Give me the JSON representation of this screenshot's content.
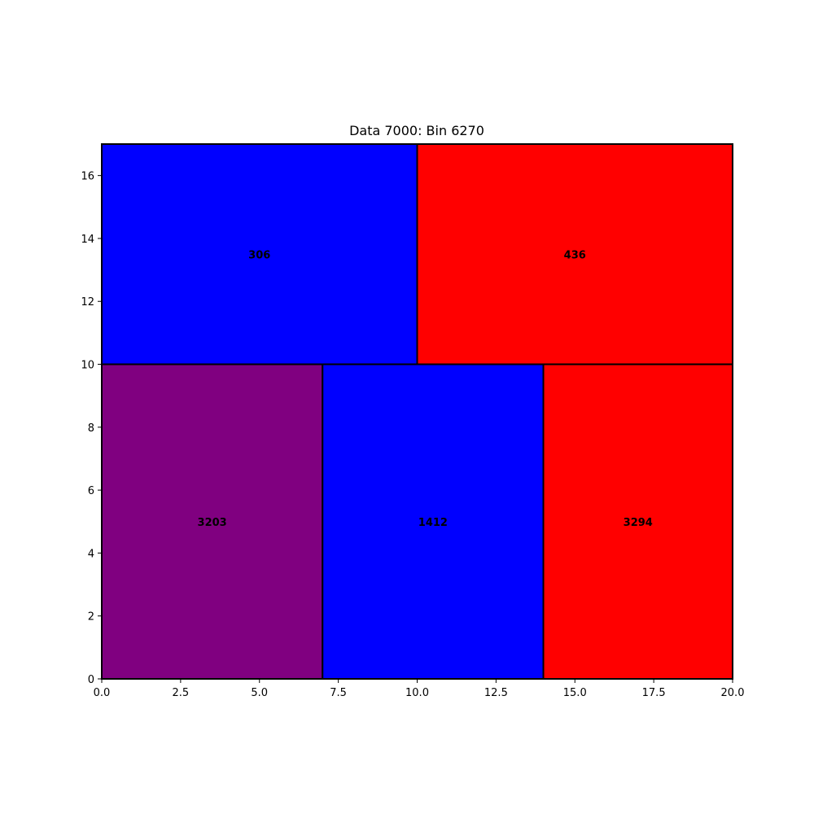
{
  "chart_data": {
    "type": "rectangle-packing",
    "title": "Data 7000: Bin 6270",
    "xlabel": "",
    "ylabel": "",
    "xlim": [
      0,
      20
    ],
    "ylim": [
      0,
      17
    ],
    "x_ticks": [
      "0.0",
      "2.5",
      "5.0",
      "7.5",
      "10.0",
      "12.5",
      "15.0",
      "17.5",
      "20.0"
    ],
    "y_ticks": [
      "0",
      "2",
      "4",
      "6",
      "8",
      "10",
      "12",
      "14",
      "16"
    ],
    "grid": false,
    "rectangles": [
      {
        "label": "306",
        "x": 0,
        "y": 10,
        "width": 10,
        "height": 7,
        "color": "#0000ff"
      },
      {
        "label": "436",
        "x": 10,
        "y": 10,
        "width": 10,
        "height": 7,
        "color": "#ff0000"
      },
      {
        "label": "3203",
        "x": 0,
        "y": 0,
        "width": 7,
        "height": 10,
        "color": "#800080"
      },
      {
        "label": "1412",
        "x": 7,
        "y": 0,
        "width": 7,
        "height": 10,
        "color": "#0000ff"
      },
      {
        "label": "3294",
        "x": 14,
        "y": 0,
        "width": 6,
        "height": 10,
        "color": "#ff0000"
      }
    ]
  }
}
